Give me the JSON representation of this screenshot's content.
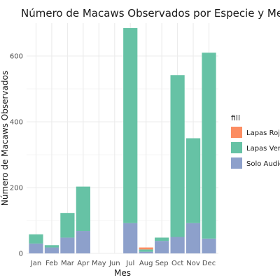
{
  "chart_data": {
    "type": "bar",
    "stacked": true,
    "title": "Número de Macaws Observados por Especie y Mes",
    "xlabel": "Mes",
    "ylabel": "Número de Macaws Observados",
    "categories": [
      "Jan",
      "Feb",
      "Mar",
      "Apr",
      "May",
      "Jun",
      "Jul",
      "Aug",
      "Sep",
      "Oct",
      "Nov",
      "Dec"
    ],
    "ylim": [
      0,
      700
    ],
    "yticks": [
      0,
      200,
      400,
      600
    ],
    "grid": true,
    "legend": {
      "title": "fill",
      "position": "right"
    },
    "series": [
      {
        "name": "Solo Audio",
        "color": "#8DA0CB",
        "values": [
          30,
          18,
          48,
          68,
          0,
          0,
          92,
          5,
          38,
          50,
          92,
          45
        ]
      },
      {
        "name": "Lapas Verdes",
        "color": "#66C2A5",
        "values": [
          28,
          7,
          75,
          135,
          0,
          0,
          593,
          7,
          10,
          492,
          258,
          565
        ]
      },
      {
        "name": "Lapas Rojas",
        "color": "#FC8D62",
        "values": [
          0,
          0,
          0,
          0,
          0,
          0,
          0,
          6,
          0,
          0,
          0,
          0
        ]
      }
    ],
    "legend_order": [
      "Lapas Rojas",
      "Lapas Verdes",
      "Solo Audio"
    ]
  }
}
